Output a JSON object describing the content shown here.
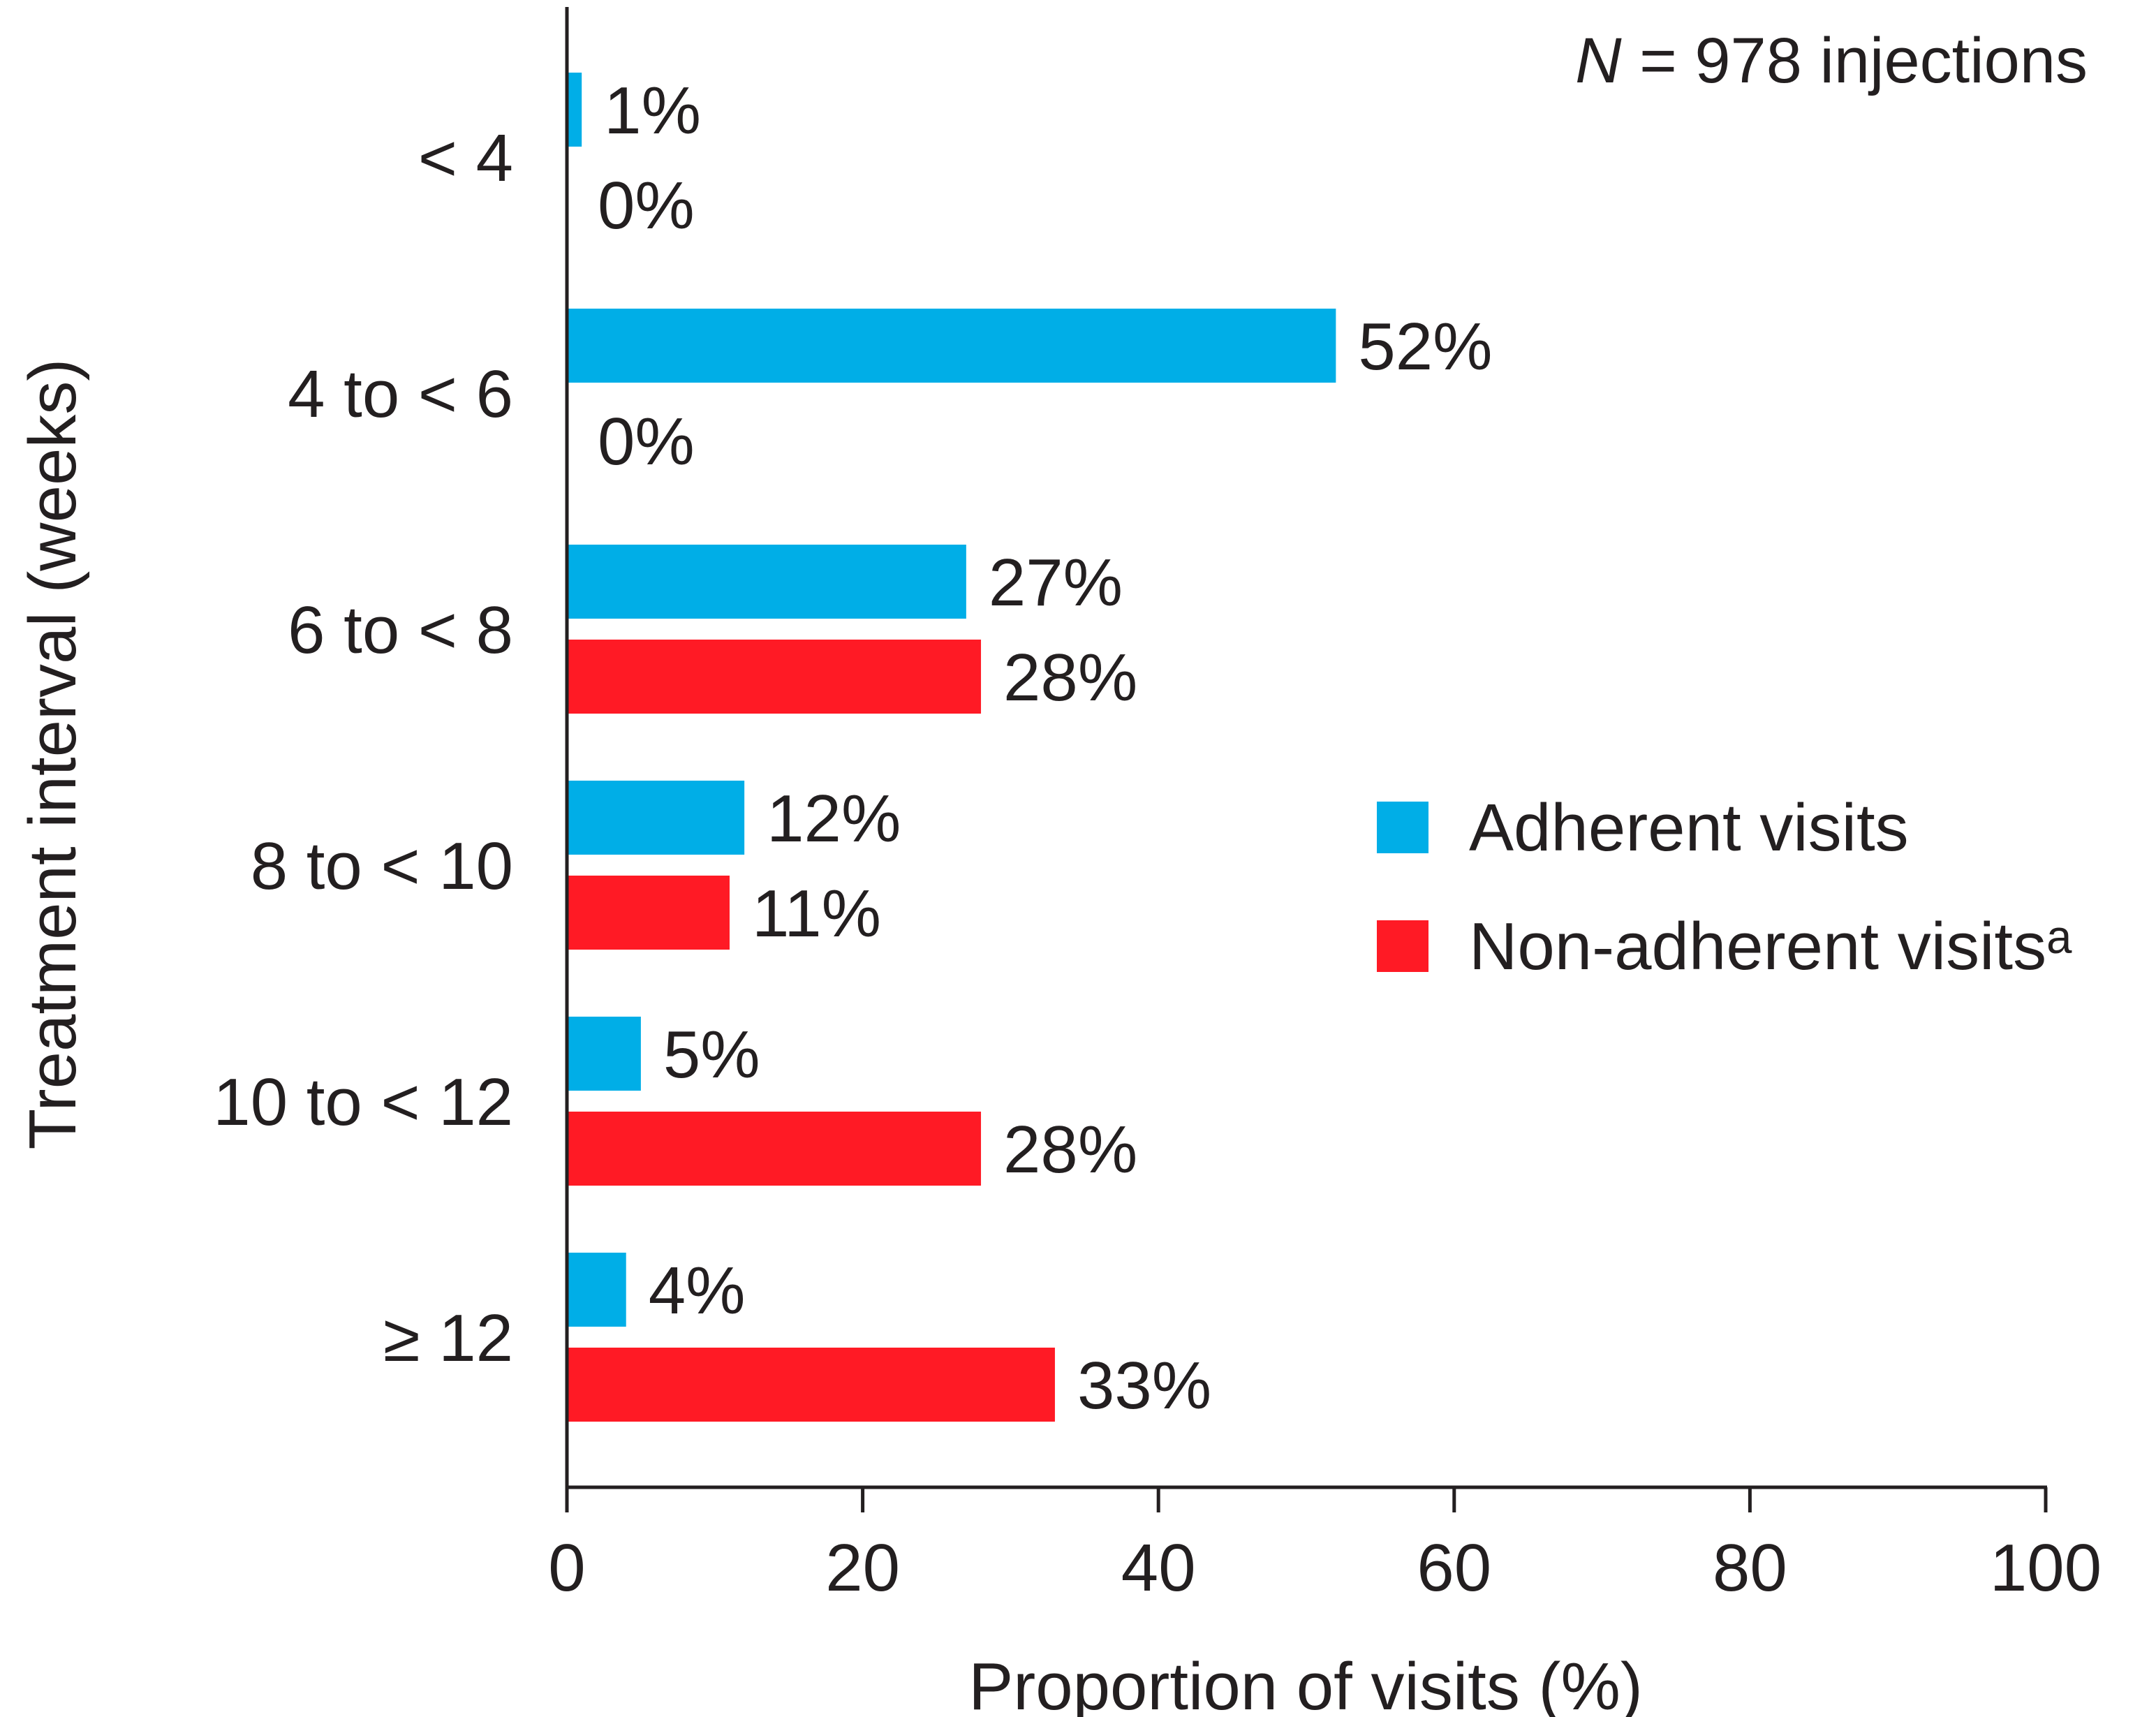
{
  "chart_data": {
    "type": "bar",
    "orientation": "horizontal",
    "annotation": {
      "italic": "N",
      "rest": " = 978 injections"
    },
    "xlabel": "Proportion of visits (%)",
    "ylabel": "Treatment interval (weeks)",
    "xlim": [
      0,
      100
    ],
    "xticks": [
      0,
      20,
      40,
      60,
      80,
      100
    ],
    "grid": false,
    "legend_position": "right",
    "categories": [
      "< 4",
      "4 to < 6",
      "6 to < 8",
      "8 to < 10",
      "10 to < 12",
      "≥ 12"
    ],
    "series": [
      {
        "name": "Adherent visits",
        "color": "#00aee7",
        "values": [
          1,
          52,
          27,
          12,
          5,
          4
        ],
        "labels": [
          "1%",
          "52%",
          "27%",
          "12%",
          "5%",
          "4%"
        ]
      },
      {
        "name": "Non-adherent visitsᵃ",
        "color": "#ff1a25",
        "values": [
          0,
          0,
          28,
          11,
          28,
          33
        ],
        "labels": [
          "0%",
          "0%",
          "28%",
          "11%",
          "28%",
          "33%"
        ]
      }
    ]
  }
}
